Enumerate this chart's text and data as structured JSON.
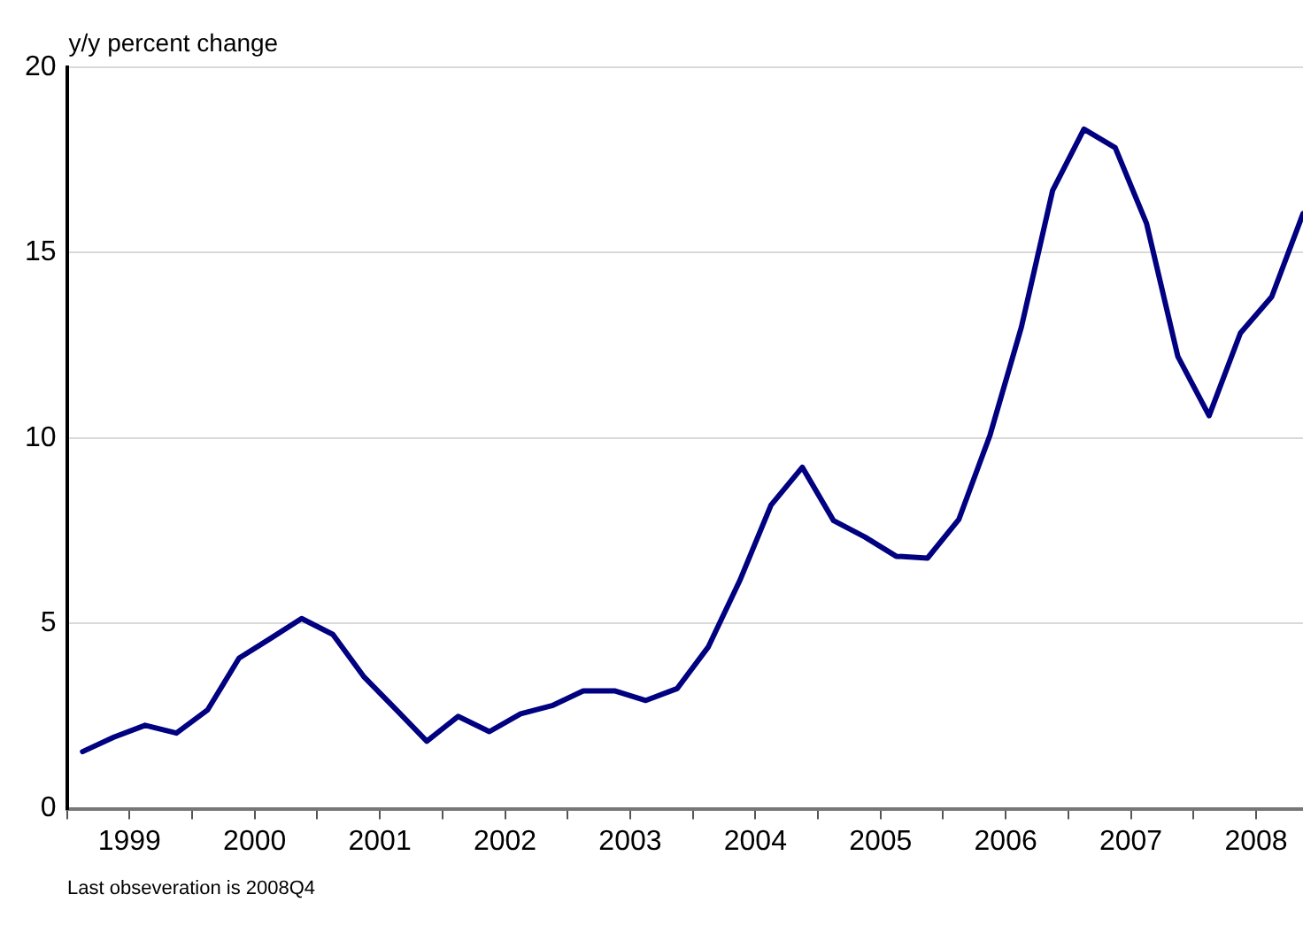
{
  "chart_data": {
    "type": "line",
    "ylabel": "y/y percent change",
    "annotations": [
      "Last obseveration is 2008Q4"
    ],
    "x": [
      1999.125,
      1999.375,
      1999.625,
      1999.875,
      2000.125,
      2000.375,
      2000.625,
      2000.875,
      2001.125,
      2001.375,
      2001.625,
      2001.875,
      2002.125,
      2002.375,
      2002.625,
      2002.875,
      2003.125,
      2003.375,
      2003.625,
      2003.875,
      2004.125,
      2004.375,
      2004.625,
      2004.875,
      2005.125,
      2005.375,
      2005.625,
      2005.875,
      2006.125,
      2006.375,
      2006.625,
      2006.875,
      2007.125,
      2007.375,
      2007.625,
      2007.875,
      2008.125,
      2008.375,
      2008.625,
      2008.875
    ],
    "series": [
      {
        "color": "#000080",
        "values": [
          1.54,
          1.93,
          2.25,
          2.04,
          2.67,
          4.06,
          4.59,
          5.13,
          4.7,
          3.55,
          2.69,
          1.82,
          2.49,
          2.08,
          2.56,
          2.78,
          3.18,
          3.18,
          2.92,
          3.24,
          4.37,
          6.15,
          8.19,
          9.21,
          7.77,
          7.33,
          6.81,
          6.76,
          7.8,
          10.08,
          12.99,
          16.68,
          18.33,
          17.83,
          15.79,
          12.2,
          10.6,
          12.83,
          13.81,
          16.05
        ]
      }
    ],
    "xlim": [
      1999,
      2008.875
    ],
    "xticks": [
      {
        "value": 1999,
        "label": null
      },
      {
        "value": 1999.5,
        "label": "1999"
      },
      {
        "value": 2000,
        "label": null
      },
      {
        "value": 2000.5,
        "label": "2000"
      },
      {
        "value": 2001,
        "label": null
      },
      {
        "value": 2001.5,
        "label": "2001"
      },
      {
        "value": 2002,
        "label": null
      },
      {
        "value": 2002.5,
        "label": "2002"
      },
      {
        "value": 2003,
        "label": null
      },
      {
        "value": 2003.5,
        "label": "2003"
      },
      {
        "value": 2004,
        "label": null
      },
      {
        "value": 2004.5,
        "label": "2004"
      },
      {
        "value": 2005,
        "label": null
      },
      {
        "value": 2005.5,
        "label": "2005"
      },
      {
        "value": 2006,
        "label": null
      },
      {
        "value": 2006.5,
        "label": "2006"
      },
      {
        "value": 2007,
        "label": null
      },
      {
        "value": 2007.5,
        "label": "2007"
      },
      {
        "value": 2008,
        "label": null
      },
      {
        "value": 2008.5,
        "label": "2008"
      }
    ],
    "ylim": [
      0,
      20
    ],
    "yticks": [
      0,
      5,
      10,
      15,
      20
    ],
    "grid": "y",
    "legend": false,
    "marker": "none",
    "line_style": "solid"
  }
}
